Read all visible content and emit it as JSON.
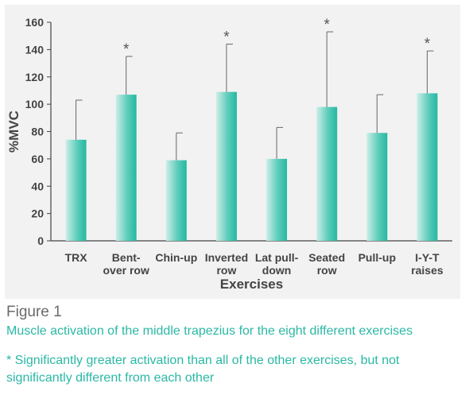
{
  "chart_data": {
    "type": "bar",
    "categories": [
      [
        "TRX"
      ],
      [
        "Bent-",
        "over row"
      ],
      [
        "Chin-up"
      ],
      [
        "Inverted",
        "row"
      ],
      [
        "Lat pull-",
        "down"
      ],
      [
        "Seated",
        "row"
      ],
      [
        "Pull-up"
      ],
      [
        "I-Y-T",
        "raises"
      ]
    ],
    "values": [
      74,
      107,
      59,
      109,
      60,
      98,
      79,
      108
    ],
    "error_upper": [
      103,
      135,
      79,
      144,
      83,
      153,
      107,
      139
    ],
    "significant": [
      false,
      true,
      false,
      true,
      false,
      true,
      false,
      true
    ],
    "significance_marker": "*",
    "ylim": [
      0,
      160
    ],
    "yticks": [
      "0",
      "20",
      "40",
      "60",
      "80",
      "100",
      "120",
      "140",
      "160"
    ],
    "xlabel": "Exercises",
    "ylabel": "%MVC",
    "grid": false,
    "bar_color": "#2bbca7"
  },
  "figure": {
    "label": "Figure 1",
    "caption": "Muscle activation of the middle trapezius for the eight different exercises",
    "footnote": "* Significantly greater activation than all of the other exercises, but not significantly different from each other"
  }
}
